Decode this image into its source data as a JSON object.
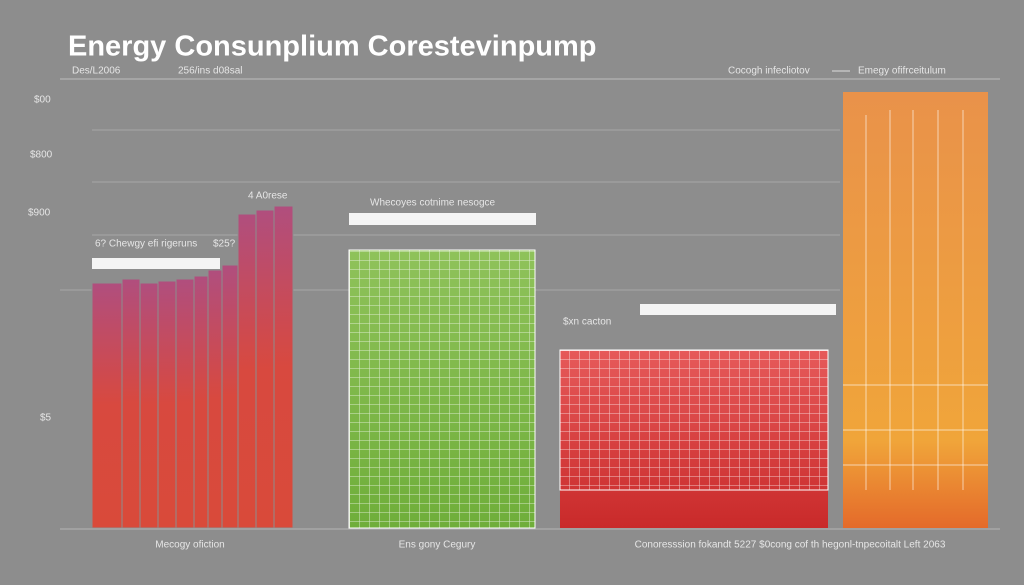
{
  "header": {
    "title": "Energy Consunplium Corestevinpump",
    "subtitle_left": "Des/L2006",
    "subtitle_right": "256/ins d08sal"
  },
  "legend": [
    "Cocogh infecliotov",
    "Emegy ofifrceitulum"
  ],
  "y_labels": [
    "$00",
    "$800",
    "$900",
    "$5"
  ],
  "annotations": [
    "6? Chewgy efi rigeruns",
    "4 A0rese",
    "$25?",
    "Whecoyes cotnime nesogce",
    "$xn cacton"
  ],
  "x_labels": [
    "Mecogy ofiction",
    "Ens gony Cegury",
    "Conoresssion fokandt 5227 $0cong cof th hegonl-tnpecoitalt Left 2063"
  ]
}
